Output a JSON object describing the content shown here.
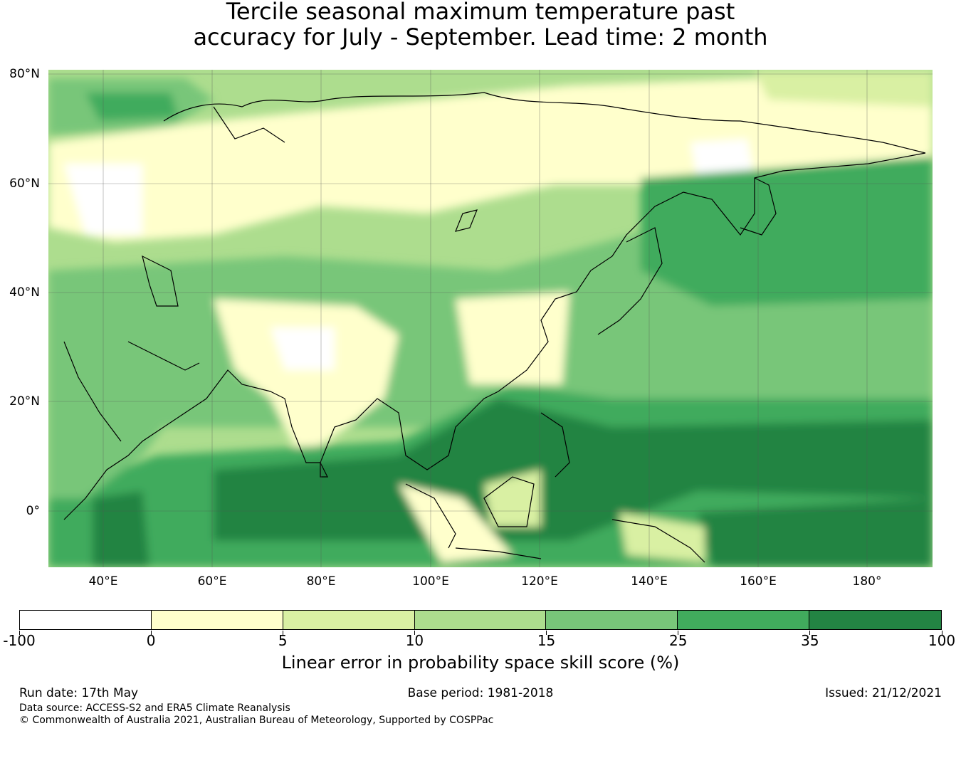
{
  "title": {
    "line1": "Tercile seasonal maximum temperature past",
    "line2": "accuracy for July - September. Lead time: 2 month"
  },
  "map": {
    "region": "Asia-Pacific",
    "lat_labels": [
      "80°N",
      "60°N",
      "40°N",
      "20°N",
      "0°"
    ],
    "lon_labels": [
      "40°E",
      "60°E",
      "80°E",
      "100°E",
      "120°E",
      "140°E",
      "160°E",
      "180°"
    ],
    "grid": true,
    "ocean_pattern": "skill increases toward tropical oceans (Indian Ocean, Maritime Continent, western Pacific); lowest over Siberia, Tibet and northern India"
  },
  "colorbar": {
    "label": "Linear error in probability space skill score (%)",
    "ticks": [
      "-100",
      "0",
      "5",
      "10",
      "15",
      "25",
      "35",
      "100"
    ],
    "colors": [
      "#ffffff",
      "#ffffcc",
      "#d9f0a3",
      "#addd8e",
      "#78c679",
      "#41ab5d",
      "#238443"
    ]
  },
  "footer": {
    "run_date": "Run date: 17th May",
    "base_period": "Base period: 1981-2018",
    "issued": "Issued: 21/12/2021",
    "data_source": "Data source: ACCESS-S2 and ERA5 Climate Reanalysis",
    "copyright": "© Commonwealth of Australia 2021, Australian Bureau of Meteorology, Supported by COSPPac"
  }
}
